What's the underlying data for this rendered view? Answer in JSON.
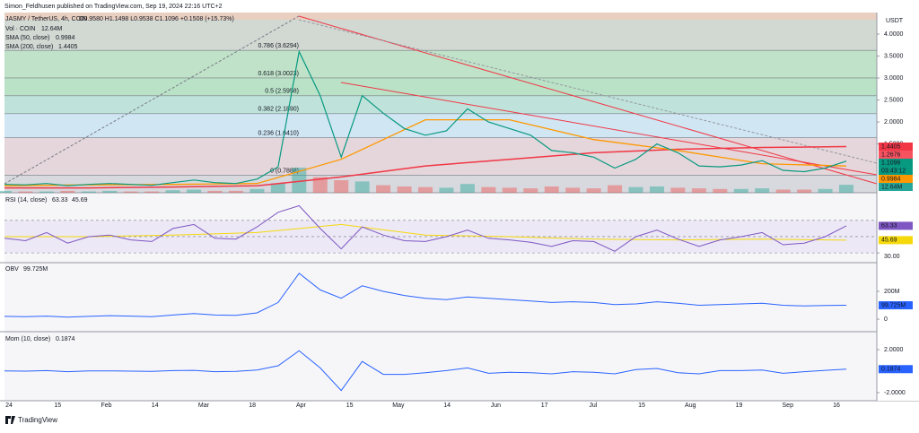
{
  "header": {
    "text": "Simon_Feldhusen published on TradingView.com, Sep 19, 2024 22:16 UTC+2"
  },
  "legend": {
    "symbol": "JASMY / TetherUS, 4h, COIN",
    "ohlc": "O0.9580 H1.1498 L0.9538 C1.1096 +0.1508 (+15.73%)",
    "vol_title": "Vol · COIN",
    "vol_value": "12.64M",
    "sma50_title": "SMA (50, close)",
    "sma50_value": "0.9984",
    "sma200_title": "SMA (200, close)",
    "sma200_value": "1.4405"
  },
  "price_pane": {
    "currency": "USDT",
    "ylim": [
      0.39,
      4.49
    ],
    "yticks": [
      {
        "value": 1.5,
        "label": "1.5000"
      },
      {
        "value": 2,
        "label": "2.0000"
      },
      {
        "value": 2.5,
        "label": "2.5000"
      },
      {
        "value": 3,
        "label": "3.0000"
      },
      {
        "value": 3.5,
        "label": "3.5000"
      },
      {
        "value": 4,
        "label": "4.0000"
      }
    ],
    "fib": [
      {
        "level": 3.6294,
        "label": "0.786 (3.6294)",
        "color": "#d2d8d2"
      },
      {
        "level": 3.0023,
        "label": "0.618 (3.0023)",
        "color": "#c0e2c8"
      },
      {
        "level": 2.5958,
        "label": "0.5 (2.5958)",
        "color": "#b9e2c7"
      },
      {
        "level": 2.189,
        "label": "0.382 (2.1890)",
        "color": "#bfe3da"
      },
      {
        "level": 1.641,
        "label": "0.236 (1.6410)",
        "color": "#d0e6f3"
      },
      {
        "level": 0.7888,
        "label": "0 (0.7888)",
        "color": "#e4d6da"
      }
    ],
    "close": [
      0.58,
      0.57,
      0.6,
      0.55,
      0.58,
      0.6,
      0.58,
      0.56,
      0.62,
      0.68,
      0.62,
      0.6,
      0.7,
      0.98,
      3.6,
      2.6,
      1.2,
      2.6,
      2.2,
      1.85,
      1.7,
      1.8,
      2.3,
      2.0,
      1.85,
      1.7,
      1.35,
      1.3,
      1.2,
      0.95,
      1.15,
      1.5,
      1.3,
      1.0,
      0.98,
      1.02,
      1.12,
      0.9,
      0.87,
      0.95,
      1.1096
    ],
    "volume": [
      3,
      2,
      2,
      3,
      2,
      3,
      2,
      2,
      4,
      5,
      3,
      3,
      6,
      15,
      40,
      25,
      20,
      18,
      12,
      10,
      9,
      8,
      14,
      9,
      8,
      7,
      10,
      8,
      7,
      12,
      9,
      10,
      8,
      7,
      6,
      6,
      7,
      5,
      5,
      6,
      12.64
    ],
    "sma50": [
      0.55,
      0.57,
      0.58,
      0.6,
      1.15,
      2.05,
      2.05,
      1.6,
      1.35,
      1.05,
      0.9984
    ],
    "sma200": [
      0.5,
      0.5,
      0.52,
      0.55,
      0.75,
      1.0,
      1.15,
      1.3,
      1.38,
      1.42,
      1.4405
    ],
    "price_labels": [
      {
        "value": 1.4405,
        "label": "1.4405",
        "color": "#f23645"
      },
      {
        "value": 1.2676,
        "label": "1.2676",
        "color": "#f7525f"
      },
      {
        "value": 1.1096,
        "label": "1.1096",
        "color": "#089981"
      },
      {
        "value": 0.9984,
        "label": "0.9984",
        "color": "#ff9800"
      }
    ],
    "countdown": "03:43:12",
    "volume_label": "12.64M"
  },
  "rsi_pane": {
    "title": "RSI (14, close)",
    "value_label": "63.33",
    "ma_label": "45.69",
    "ylim": [
      18,
      104
    ],
    "yticks": [
      {
        "value": 30,
        "label": "30.00"
      }
    ],
    "levels": [
      70,
      50,
      30
    ],
    "rsi": [
      48,
      45,
      55,
      42,
      50,
      52,
      46,
      44,
      60,
      65,
      48,
      47,
      62,
      80,
      88,
      60,
      35,
      62,
      52,
      45,
      44,
      50,
      58,
      48,
      46,
      43,
      38,
      45,
      44,
      32,
      50,
      58,
      47,
      38,
      46,
      50,
      55,
      40,
      42,
      50,
      63.33
    ],
    "rsi_ma": [
      50,
      50,
      52,
      55,
      65,
      52,
      50,
      47,
      46,
      47,
      45.69
    ]
  },
  "obv_pane": {
    "title": "OBV",
    "value_label": "99.725M",
    "ylim": [
      -90,
      406
    ],
    "yticks": [
      0,
      {
        "value": 200,
        "label": "200M"
      }
    ],
    "obv": [
      20,
      18,
      22,
      15,
      20,
      25,
      22,
      18,
      30,
      40,
      30,
      28,
      45,
      120,
      330,
      210,
      150,
      240,
      200,
      170,
      150,
      140,
      160,
      150,
      140,
      130,
      120,
      125,
      120,
      105,
      110,
      125,
      115,
      100,
      105,
      110,
      115,
      100,
      95,
      98,
      99.725
    ]
  },
  "mom_pane": {
    "title": "Mom (10, close)",
    "value_label": "0.1874",
    "ylim": [
      -2.75,
      3.67
    ],
    "yticks": [
      {
        "value": 2,
        "label": "2.0000"
      },
      {
        "value": -2,
        "label": "-2.0000"
      }
    ],
    "mom": [
      0.02,
      0,
      0.05,
      -0.05,
      0.02,
      0.03,
      0,
      -0.02,
      0.05,
      0.08,
      -0.05,
      -0.02,
      0.1,
      0.5,
      1.9,
      0.3,
      -1.8,
      0.9,
      -0.3,
      -0.3,
      -0.15,
      0.05,
      0.3,
      -0.2,
      -0.1,
      -0.15,
      -0.25,
      -0.05,
      -0.1,
      -0.25,
      0.15,
      0.25,
      -0.15,
      -0.25,
      0.05,
      0.05,
      0.1,
      -0.2,
      -0.05,
      0.08,
      0.1874
    ]
  },
  "x_axis": {
    "labels": [
      "24",
      "15",
      "Feb",
      "14",
      "Mar",
      "18",
      "Apr",
      "15",
      "May",
      "14",
      "Jun",
      "17",
      "Jul",
      "15",
      "Aug",
      "19",
      "Sep",
      "16"
    ]
  },
  "footer": {
    "brand": "TradingView"
  }
}
